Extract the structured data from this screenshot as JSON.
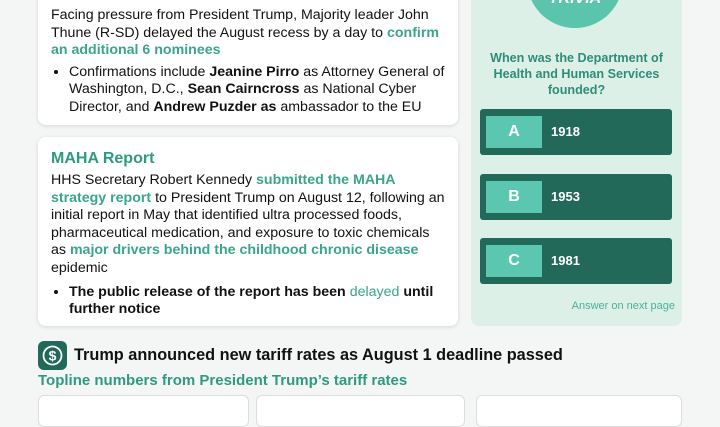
{
  "card1": {
    "paragraph": [
      "Facing pressure from President Trump, Majority leader John Thune (R-SD) delayed the August recess by a day to",
      "confirm an additional 6 nominees"
    ],
    "bullet": [
      "Confirmations include",
      "Jeanine Pirro",
      "as Attorney General of Washington, D.C.,",
      "Sean Cairncross",
      "as National Cyber Director, and",
      "Andrew Puzder as",
      "ambassador to the EU"
    ]
  },
  "card2": {
    "title": "MAHA Report",
    "paragraph": [
      "HHS Secretary Robert Kennedy",
      "submitted the MAHA strategy report",
      "to President Trump on August 12, following an initial report in May that identified ultra processed foods, pharmaceutical medication, and exposure to toxic chemicals as",
      "major drivers behind the childhood chronic disease",
      "epidemic"
    ],
    "bullet": [
      "The public release of the report has been",
      "delayed",
      "until further notice"
    ]
  },
  "trivia": {
    "badge": "TRIVIA",
    "question": "When was the Department of Health and Human Services founded?",
    "options": [
      {
        "letter": "A",
        "text": "1918"
      },
      {
        "letter": "B",
        "text": "1953"
      },
      {
        "letter": "C",
        "text": "1981"
      }
    ],
    "footer": "Answer on next page"
  },
  "section": {
    "icon": "$",
    "title": "Trump announced new tariff rates as August 1 deadline passed",
    "subtitle": "Topline numbers from President Trump’s tariff rates"
  }
}
